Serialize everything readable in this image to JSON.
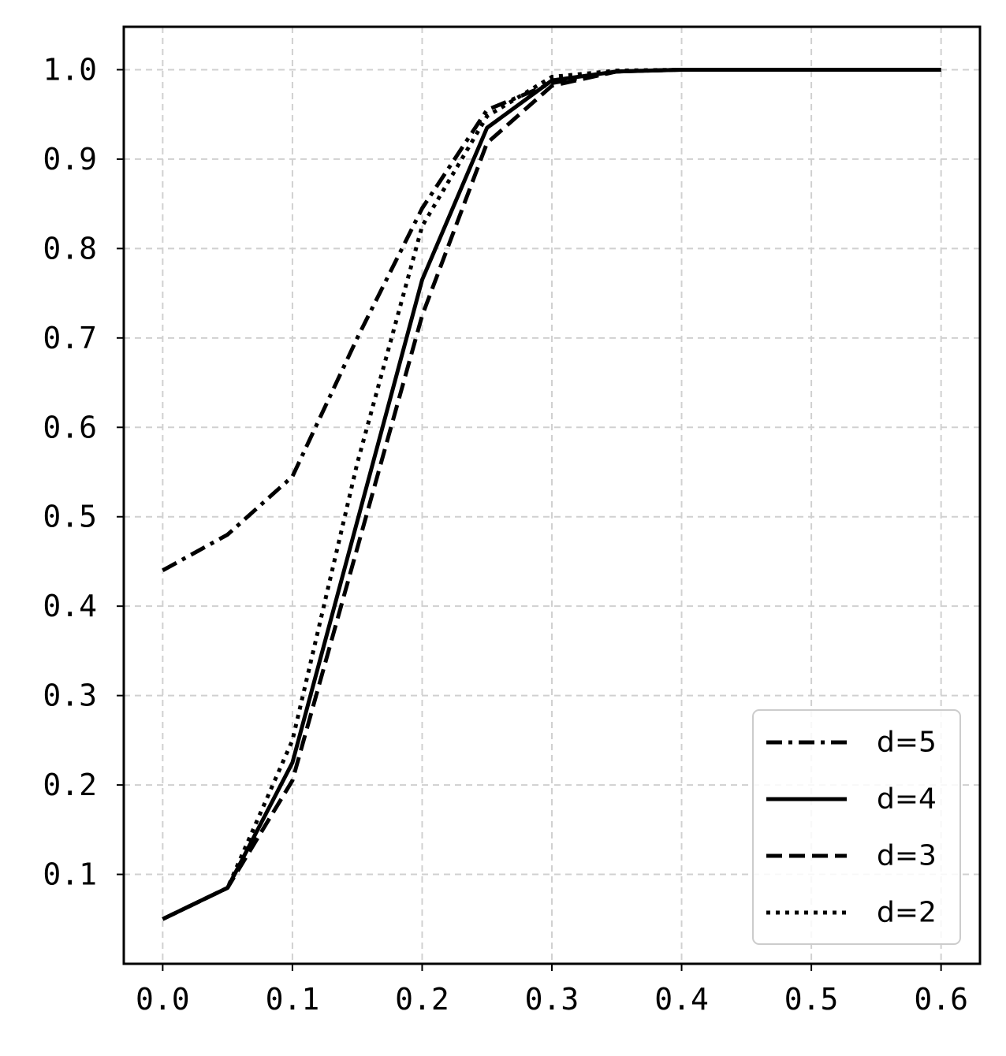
{
  "chart_data": {
    "type": "line",
    "title": "",
    "xlabel": "",
    "ylabel": "",
    "xlim": [
      -0.03,
      0.63
    ],
    "ylim": [
      0.0,
      1.048
    ],
    "x_ticks": [
      0.0,
      0.1,
      0.2,
      0.3,
      0.4,
      0.5,
      0.6
    ],
    "x_tick_labels": [
      "0.0",
      "0.1",
      "0.2",
      "0.3",
      "0.4",
      "0.5",
      "0.6"
    ],
    "y_ticks": [
      0.1,
      0.2,
      0.3,
      0.4,
      0.5,
      0.6,
      0.7,
      0.8,
      0.9,
      1.0
    ],
    "y_tick_labels": [
      "0.1",
      "0.2",
      "0.3",
      "0.4",
      "0.5",
      "0.6",
      "0.7",
      "0.8",
      "0.9",
      "1.0"
    ],
    "grid": true,
    "legend_position": "lower-right",
    "x": [
      0.0,
      0.05,
      0.1,
      0.15,
      0.2,
      0.25,
      0.3,
      0.35,
      0.4,
      0.45,
      0.5,
      0.55,
      0.6
    ],
    "series": [
      {
        "name": "d=5",
        "style": "dashdot",
        "color": "#000000",
        "values": [
          0.44,
          0.48,
          0.545,
          0.7,
          0.845,
          0.955,
          0.985,
          0.998,
          1.0,
          1.0,
          1.0,
          1.0,
          1.0
        ]
      },
      {
        "name": "d=4",
        "style": "solid",
        "color": "#000000",
        "values": [
          0.05,
          0.085,
          0.225,
          0.495,
          0.765,
          0.935,
          0.988,
          0.998,
          1.0,
          1.0,
          1.0,
          1.0,
          1.0
        ]
      },
      {
        "name": "d=3",
        "style": "dashed",
        "color": "#000000",
        "values": [
          0.05,
          0.085,
          0.205,
          0.465,
          0.725,
          0.918,
          0.982,
          0.998,
          1.0,
          1.0,
          1.0,
          1.0,
          1.0
        ]
      },
      {
        "name": "d=2",
        "style": "dotted",
        "color": "#000000",
        "values": [
          0.05,
          0.085,
          0.25,
          0.56,
          0.825,
          0.948,
          0.992,
          0.999,
          1.0,
          1.0,
          1.0,
          1.0,
          1.0
        ]
      }
    ]
  }
}
